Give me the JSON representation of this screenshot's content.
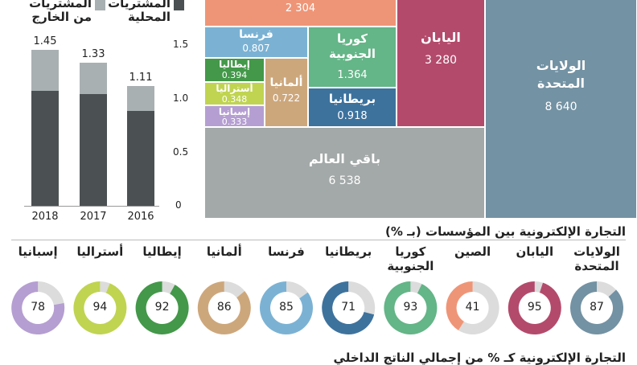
{
  "chart_data": [
    {
      "type": "bar",
      "stacked": true,
      "categories": [
        "2018",
        "2017",
        "2016"
      ],
      "totals": [
        1.45,
        1.33,
        1.11
      ],
      "series": [
        {
          "name": "المشتريات المحلية",
          "color": "#4b5152",
          "values": [
            1.07,
            1.04,
            0.88
          ]
        },
        {
          "name": "المشتريات من الخارج",
          "color": "#a9b0b1",
          "values": [
            0.38,
            0.29,
            0.23
          ]
        }
      ],
      "yticks": [
        "0",
        "0.5",
        "1.0",
        "1.5"
      ],
      "ylim": [
        0,
        1.5
      ],
      "grid": false,
      "legend": "top"
    },
    {
      "type": "treemap",
      "items": [
        {
          "name": "الولايات المتحدة",
          "value": "8 640",
          "color": "#7392a3"
        },
        {
          "name": "باقي العالم",
          "value": "6 538",
          "color": "#a3a8a8"
        },
        {
          "name": "اليابان",
          "value": "3 280",
          "color": "#b34a6c"
        },
        {
          "name": "",
          "value": "2 304",
          "color": "#ef9577"
        },
        {
          "name": "كوريا الجنوبية",
          "value": "1.364",
          "color": "#64b587"
        },
        {
          "name": "بريطانيا",
          "value": "0.918",
          "color": "#3d729d"
        },
        {
          "name": "فرنسا",
          "value": "0.807",
          "color": "#7bb2d4"
        },
        {
          "name": "ألمانيا",
          "value": "0.722",
          "color": "#cda77c"
        },
        {
          "name": "إيطاليا",
          "value": "0.394",
          "color": "#439849"
        },
        {
          "name": "أستراليا",
          "value": "0.348",
          "color": "#c0d451"
        },
        {
          "name": "إسبانيا",
          "value": "0.333",
          "color": "#b59ed1"
        }
      ]
    },
    {
      "type": "pie",
      "variant": "donut",
      "title": "التجارة الإلكترونية بين المؤسسات (بـ %)",
      "items": [
        {
          "name": "الولايات المتحدة",
          "value": 87,
          "color": "#7392a3"
        },
        {
          "name": "اليابان",
          "value": 95,
          "color": "#b34a6c"
        },
        {
          "name": "الصين",
          "value": 41,
          "color": "#ef9577"
        },
        {
          "name": "كوريا الجنوبية",
          "value": 93,
          "color": "#64b587"
        },
        {
          "name": "بريطانيا",
          "value": 71,
          "color": "#3d729d"
        },
        {
          "name": "فرنسا",
          "value": 85,
          "color": "#7bb2d4"
        },
        {
          "name": "ألمانيا",
          "value": 86,
          "color": "#cda77c"
        },
        {
          "name": "إيطاليا",
          "value": 92,
          "color": "#439849"
        },
        {
          "name": "أستراليا",
          "value": 94,
          "color": "#c0d451"
        },
        {
          "name": "إسبانيا",
          "value": 78,
          "color": "#b59ed1"
        }
      ]
    }
  ],
  "bottom_title": "التجارة الإلكترونية كـ % من إجمالي الناتج الداخلي"
}
